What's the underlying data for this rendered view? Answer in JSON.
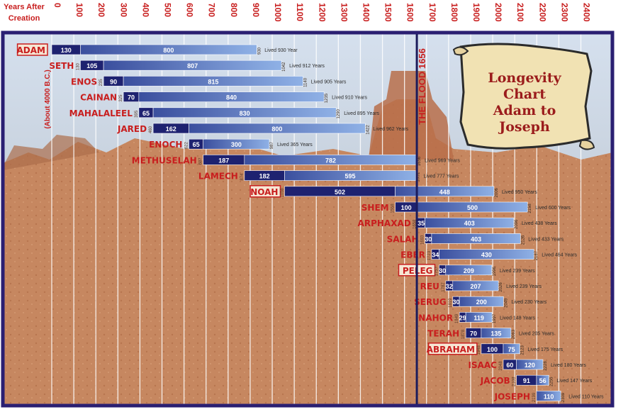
{
  "header": {
    "axis_caption_line1": "Years After",
    "axis_caption_line2": "Creation"
  },
  "side_note": "(About 4000 B.C.)",
  "flood_label": "THE FLOOD 1656",
  "scroll": {
    "lines": [
      "Longevity",
      "Chart",
      "Adam to",
      "Joseph"
    ]
  },
  "colors": {
    "frame": "#2a1f72",
    "bar_dark": "#1e2270",
    "bar_light": "#6f95d8",
    "name_red": "#c81e1e",
    "flood_line": "#1c1c5c",
    "sky": "#cfdbe9",
    "rock": "#c88a63"
  },
  "chart_data": {
    "type": "bar",
    "orientation": "horizontal-timeline",
    "title": "Longevity Chart Adam to Joseph",
    "x_axis_label": "Years After Creation",
    "xlim": [
      0,
      2400
    ],
    "x_ticks": [
      "0",
      "100",
      "200",
      "300",
      "400",
      "500",
      "600",
      "700",
      "800",
      "900",
      "1000",
      "1100",
      "1200",
      "1300",
      "1400",
      "1500",
      "1600",
      "1700",
      "1800",
      "1900",
      "2000",
      "2100",
      "2200",
      "2300",
      "2400"
    ],
    "flood_year": 1656,
    "people": [
      {
        "name": "ADAM",
        "boxed": true,
        "start": 0,
        "first": 130,
        "rest": 800,
        "end_label": "930",
        "lived": "Lived 930 Year"
      },
      {
        "name": "SETH",
        "boxed": false,
        "start_label": "130",
        "start": 130,
        "first": 105,
        "rest": 807,
        "end_label": "1042",
        "lived": "Lived 912 Years"
      },
      {
        "name": "ENOS",
        "boxed": false,
        "start_label": "235",
        "start": 235,
        "first": 90,
        "rest": 815,
        "end_label": "1140",
        "lived": "Lived 905 Years"
      },
      {
        "name": "CAINAN",
        "boxed": false,
        "start_label": "325",
        "start": 325,
        "first": 70,
        "rest": 840,
        "end_label": "1235",
        "lived": "Lived 910 Years"
      },
      {
        "name": "MAHALALEEL",
        "boxed": false,
        "start_label": "395",
        "start": 395,
        "first": 65,
        "rest": 830,
        "end_label": "1290",
        "lived": "Lived 895 Years"
      },
      {
        "name": "JARED",
        "boxed": false,
        "start_label": "460",
        "start": 460,
        "first": 162,
        "rest": 800,
        "end_label": "1422",
        "lived": "Lived 962 Years"
      },
      {
        "name": "ENOCH",
        "boxed": false,
        "start_label": "622",
        "start": 622,
        "first": 65,
        "rest": 300,
        "end_label": "987",
        "lived": "Lived 365 Years"
      },
      {
        "name": "METHUSELAH",
        "boxed": false,
        "start_label": "687",
        "start": 687,
        "first": 187,
        "rest": 782,
        "end_label": "1656",
        "lived": "Lived 969 Years"
      },
      {
        "name": "LAMECH",
        "boxed": false,
        "start_label": "874",
        "start": 874,
        "first": 182,
        "rest": 595,
        "end_label": "1651",
        "lived": "Lived 777 Years"
      },
      {
        "name": "NOAH",
        "boxed": true,
        "start_label": "1056",
        "start": 1056,
        "first": 502,
        "rest": 448,
        "end_label": "2006",
        "lived": "Lived 950 Years"
      },
      {
        "name": "SHEM",
        "boxed": false,
        "start_label": "1558",
        "start": 1558,
        "first": 100,
        "rest": 500,
        "end_label": "2158",
        "lived": "Lived 600 Years"
      },
      {
        "name": "ARPHAXAD",
        "boxed": false,
        "start_label": "1658",
        "start": 1658,
        "first": 35,
        "rest": 403,
        "end_label": "2096",
        "lived": "Lived 438 Years"
      },
      {
        "name": "SALAH",
        "boxed": false,
        "start_label": "1693",
        "start": 1693,
        "first": 30,
        "rest": 403,
        "end_label": "2126",
        "lived": "Lived 433 Years"
      },
      {
        "name": "EBER",
        "boxed": false,
        "start_label": "1723",
        "start": 1723,
        "first": 34,
        "rest": 430,
        "end_label": "2187",
        "lived": "Lived 464 Years"
      },
      {
        "name": "PELEG",
        "boxed": true,
        "start_label": "1757",
        "start": 1757,
        "first": 30,
        "rest": 209,
        "end_label": "1996",
        "lived": "Lived 239 Years"
      },
      {
        "name": "REU",
        "boxed": false,
        "start_label": "1787",
        "start": 1787,
        "first": 32,
        "rest": 207,
        "end_label": "2026",
        "lived": "Lived 239 Years"
      },
      {
        "name": "SERUG",
        "boxed": false,
        "start_label": "1819",
        "start": 1819,
        "first": 30,
        "rest": 200,
        "end_label": "2049",
        "lived": "Lived 230 Years"
      },
      {
        "name": "NAHOR",
        "boxed": false,
        "start_label": "1849",
        "start": 1849,
        "first": 29,
        "rest": 119,
        "end_label": "1997",
        "lived": "Lived 148 Years"
      },
      {
        "name": "TERAH",
        "boxed": false,
        "start_label": "1878",
        "start": 1878,
        "first": 70,
        "rest": 135,
        "end_label": "2083",
        "lived": "Lived 205 Years"
      },
      {
        "name": "ABRAHAM",
        "boxed": true,
        "start_label": "1948",
        "start": 1948,
        "first": 100,
        "rest": 75,
        "end_label": "2123",
        "lived": "Lived 175 Years"
      },
      {
        "name": "ISAAC",
        "boxed": false,
        "start_label": "2048",
        "start": 2048,
        "first": 60,
        "rest": 120,
        "end_label": "2228",
        "lived": "Lived 180 Years"
      },
      {
        "name": "JACOB",
        "boxed": false,
        "start_label": "2108",
        "start": 2108,
        "first": 91,
        "rest": 56,
        "end_label": "2255",
        "lived": "Lived 147 Years"
      },
      {
        "name": "JOSEPH",
        "boxed": false,
        "start_label": "2199",
        "start": 2199,
        "first": null,
        "rest": 110,
        "end_label": "2309",
        "lived": "Lived 110 Years"
      }
    ]
  }
}
